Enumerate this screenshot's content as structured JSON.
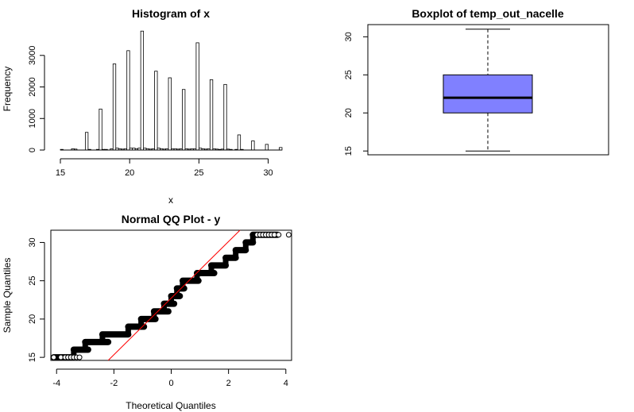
{
  "chart_data": [
    {
      "type": "bar",
      "title": "Histogram of x",
      "xlabel": "x",
      "ylabel": "Frequency",
      "xlim": [
        15,
        31
      ],
      "ylim": [
        0,
        3800
      ],
      "x_ticks": [
        "15",
        "20",
        "25",
        "30"
      ],
      "y_ticks": [
        "0",
        "1000",
        "2000",
        "3000"
      ],
      "bin_width": 0.2,
      "bins": [
        {
          "x": 15.0,
          "count": 20
        },
        {
          "x": 15.8,
          "count": 40
        },
        {
          "x": 16.0,
          "count": 30
        },
        {
          "x": 16.8,
          "count": 560
        },
        {
          "x": 17.0,
          "count": 20
        },
        {
          "x": 17.6,
          "count": 20
        },
        {
          "x": 17.8,
          "count": 1300
        },
        {
          "x": 18.0,
          "count": 20
        },
        {
          "x": 18.2,
          "count": 20
        },
        {
          "x": 18.6,
          "count": 40
        },
        {
          "x": 18.8,
          "count": 2730
        },
        {
          "x": 19.0,
          "count": 60
        },
        {
          "x": 19.2,
          "count": 40
        },
        {
          "x": 19.4,
          "count": 30
        },
        {
          "x": 19.6,
          "count": 40
        },
        {
          "x": 19.8,
          "count": 3150
        },
        {
          "x": 20.0,
          "count": 60
        },
        {
          "x": 20.2,
          "count": 60
        },
        {
          "x": 20.4,
          "count": 40
        },
        {
          "x": 20.6,
          "count": 60
        },
        {
          "x": 20.8,
          "count": 3770
        },
        {
          "x": 21.0,
          "count": 60
        },
        {
          "x": 21.2,
          "count": 40
        },
        {
          "x": 21.4,
          "count": 30
        },
        {
          "x": 21.6,
          "count": 40
        },
        {
          "x": 21.8,
          "count": 2500
        },
        {
          "x": 22.0,
          "count": 60
        },
        {
          "x": 22.2,
          "count": 40
        },
        {
          "x": 22.4,
          "count": 30
        },
        {
          "x": 22.6,
          "count": 40
        },
        {
          "x": 22.8,
          "count": 2290
        },
        {
          "x": 23.0,
          "count": 40
        },
        {
          "x": 23.2,
          "count": 40
        },
        {
          "x": 23.4,
          "count": 30
        },
        {
          "x": 23.6,
          "count": 40
        },
        {
          "x": 23.8,
          "count": 1920
        },
        {
          "x": 24.0,
          "count": 40
        },
        {
          "x": 24.2,
          "count": 30
        },
        {
          "x": 24.4,
          "count": 40
        },
        {
          "x": 24.6,
          "count": 40
        },
        {
          "x": 24.8,
          "count": 3400
        },
        {
          "x": 25.0,
          "count": 60
        },
        {
          "x": 25.2,
          "count": 40
        },
        {
          "x": 25.4,
          "count": 30
        },
        {
          "x": 25.6,
          "count": 40
        },
        {
          "x": 25.8,
          "count": 2230
        },
        {
          "x": 26.0,
          "count": 40
        },
        {
          "x": 26.2,
          "count": 30
        },
        {
          "x": 26.4,
          "count": 20
        },
        {
          "x": 26.6,
          "count": 30
        },
        {
          "x": 26.8,
          "count": 2080
        },
        {
          "x": 27.0,
          "count": 30
        },
        {
          "x": 27.2,
          "count": 20
        },
        {
          "x": 27.6,
          "count": 20
        },
        {
          "x": 27.8,
          "count": 480
        },
        {
          "x": 28.0,
          "count": 20
        },
        {
          "x": 28.8,
          "count": 290
        },
        {
          "x": 29.8,
          "count": 180
        },
        {
          "x": 30.8,
          "count": 80
        }
      ]
    },
    {
      "type": "box",
      "title": "Boxplot of temp_out_nacelle",
      "ylim": [
        14.5,
        31.6
      ],
      "y_ticks": [
        "15",
        "20",
        "25",
        "30"
      ],
      "min": 15,
      "q1": 20,
      "median": 22,
      "q3": 25,
      "max": 31,
      "fill_color": "#8080ff"
    },
    {
      "type": "scatter",
      "title": "Normal QQ Plot - y",
      "xlabel": "Theoretical Quantiles",
      "ylabel": "Sample Quantiles",
      "xlim": [
        -4.2,
        4.2
      ],
      "ylim": [
        14.6,
        31.6
      ],
      "x_ticks": [
        "-4",
        "-2",
        "0",
        "2",
        "4"
      ],
      "y_ticks": [
        "15",
        "20",
        "25",
        "30"
      ],
      "steps": [
        {
          "y": 15,
          "x0": -4.1,
          "x1": -3.5
        },
        {
          "y": 16,
          "x0": -3.4,
          "x1": -2.9
        },
        {
          "y": 17,
          "x0": -3.0,
          "x1": -2.2
        },
        {
          "y": 18,
          "x0": -2.4,
          "x1": -1.5
        },
        {
          "y": 19,
          "x0": -1.5,
          "x1": -0.95
        },
        {
          "y": 20,
          "x0": -1.05,
          "x1": -0.55
        },
        {
          "y": 21,
          "x0": -0.6,
          "x1": -0.1
        },
        {
          "y": 22,
          "x0": -0.25,
          "x1": 0.1
        },
        {
          "y": 23,
          "x0": 0.0,
          "x1": 0.3
        },
        {
          "y": 24,
          "x0": 0.2,
          "x1": 0.45
        },
        {
          "y": 25,
          "x0": 0.4,
          "x1": 0.95
        },
        {
          "y": 26,
          "x0": 0.9,
          "x1": 1.5
        },
        {
          "y": 27,
          "x0": 1.4,
          "x1": 1.9
        },
        {
          "y": 28,
          "x0": 1.9,
          "x1": 2.25
        },
        {
          "y": 29,
          "x0": 2.25,
          "x1": 2.6
        },
        {
          "y": 30,
          "x0": 2.6,
          "x1": 2.85
        },
        {
          "y": 31,
          "x0": 2.85,
          "x1": 3.7
        }
      ],
      "outlier_points": [
        {
          "x": -4.1,
          "y": 15
        },
        {
          "x": -3.85,
          "y": 15
        },
        {
          "x": -3.7,
          "y": 15
        },
        {
          "x": -3.6,
          "y": 15
        },
        {
          "x": -3.5,
          "y": 15
        },
        {
          "x": -3.4,
          "y": 15
        },
        {
          "x": -3.3,
          "y": 15
        },
        {
          "x": -3.2,
          "y": 15
        },
        {
          "x": 3.0,
          "y": 31
        },
        {
          "x": 3.1,
          "y": 31
        },
        {
          "x": 3.2,
          "y": 31
        },
        {
          "x": 3.3,
          "y": 31
        },
        {
          "x": 3.4,
          "y": 31
        },
        {
          "x": 3.5,
          "y": 31
        },
        {
          "x": 3.6,
          "y": 31
        },
        {
          "x": 3.75,
          "y": 31
        },
        {
          "x": 4.1,
          "y": 31
        }
      ],
      "qq_line": {
        "x": [
          -2.2,
          2.4
        ],
        "y": [
          14.6,
          31.6
        ],
        "color": "#ff0000"
      }
    }
  ]
}
